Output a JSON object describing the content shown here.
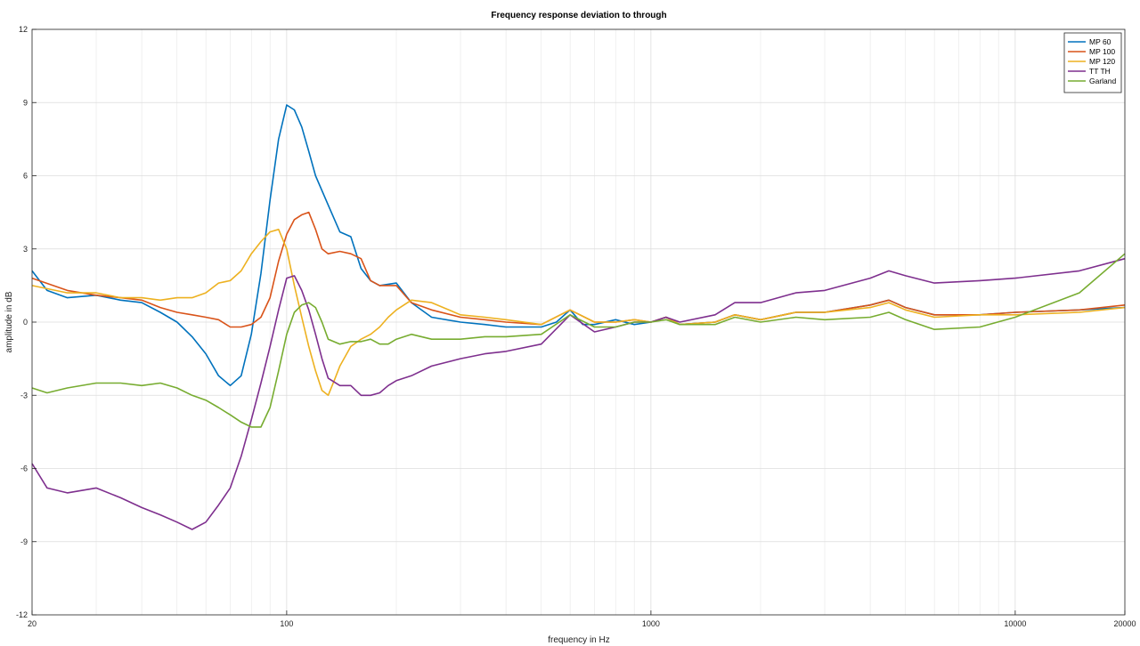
{
  "chart_data": {
    "type": "line",
    "title": "Frequency response deviation to through",
    "xlabel": "frequency in Hz",
    "ylabel": "amplitude in dB",
    "xscale": "log",
    "xlim": [
      20,
      20000
    ],
    "ylim": [
      -12,
      12
    ],
    "xticks": [
      20,
      100,
      1000,
      10000,
      20000
    ],
    "xtick_labels": [
      "20",
      "100",
      "1000",
      "10000",
      "20000"
    ],
    "yticks": [
      -12,
      -9,
      -6,
      -3,
      0,
      3,
      6,
      9,
      12
    ],
    "ytick_labels": [
      "-12",
      "-9",
      "-6",
      "-3",
      "0",
      "3",
      "6",
      "9",
      "12"
    ],
    "grid": true,
    "legend_position": "top-right",
    "series": [
      {
        "name": "MP 60",
        "color": "#0072BD",
        "x": [
          20,
          22,
          25,
          30,
          35,
          40,
          45,
          50,
          55,
          60,
          65,
          70,
          75,
          80,
          85,
          90,
          95,
          100,
          105,
          110,
          115,
          120,
          130,
          140,
          150,
          160,
          170,
          180,
          200,
          220,
          250,
          300,
          350,
          400,
          450,
          500,
          550,
          600,
          650,
          700,
          800,
          900,
          1000,
          1100,
          1200,
          1500,
          1700,
          2000,
          2500,
          3000,
          4000,
          4500,
          5000,
          6000,
          8000,
          10000,
          15000,
          20000
        ],
        "y": [
          2.1,
          1.3,
          1.0,
          1.1,
          0.9,
          0.8,
          0.4,
          0.0,
          -0.6,
          -1.3,
          -2.2,
          -2.6,
          -2.2,
          -0.5,
          2.0,
          5.0,
          7.5,
          8.9,
          8.7,
          8.0,
          7.0,
          6.0,
          4.8,
          3.7,
          3.5,
          2.2,
          1.7,
          1.5,
          1.6,
          0.8,
          0.2,
          0.0,
          -0.1,
          -0.2,
          -0.2,
          -0.2,
          0.0,
          0.5,
          -0.1,
          -0.1,
          0.1,
          -0.1,
          0.0,
          0.2,
          -0.1,
          0.0,
          0.3,
          0.1,
          0.4,
          0.4,
          0.7,
          0.9,
          0.6,
          0.3,
          0.3,
          0.4,
          0.5,
          0.6
        ]
      },
      {
        "name": "MP 100",
        "color": "#D95319",
        "x": [
          20,
          25,
          30,
          35,
          40,
          45,
          50,
          55,
          60,
          65,
          70,
          75,
          80,
          85,
          90,
          95,
          100,
          105,
          110,
          115,
          120,
          125,
          130,
          140,
          150,
          160,
          170,
          180,
          200,
          220,
          250,
          300,
          350,
          400,
          500,
          600,
          700,
          800,
          900,
          1000,
          1100,
          1200,
          1500,
          1700,
          2000,
          2500,
          3000,
          4000,
          4500,
          5000,
          6000,
          8000,
          10000,
          15000,
          20000
        ],
        "y": [
          1.8,
          1.3,
          1.1,
          1.0,
          0.9,
          0.6,
          0.4,
          0.3,
          0.2,
          0.1,
          -0.2,
          -0.2,
          -0.1,
          0.2,
          1.0,
          2.5,
          3.6,
          4.2,
          4.4,
          4.5,
          3.8,
          3.0,
          2.8,
          2.9,
          2.8,
          2.6,
          1.7,
          1.5,
          1.5,
          0.8,
          0.5,
          0.2,
          0.1,
          0.0,
          -0.1,
          0.5,
          0.0,
          0.0,
          0.1,
          0.0,
          0.2,
          -0.1,
          0.0,
          0.3,
          0.1,
          0.4,
          0.4,
          0.7,
          0.9,
          0.6,
          0.3,
          0.3,
          0.4,
          0.5,
          0.7
        ]
      },
      {
        "name": "MP 120",
        "color": "#EDB120",
        "x": [
          20,
          25,
          30,
          35,
          40,
          45,
          50,
          55,
          60,
          65,
          70,
          75,
          80,
          85,
          90,
          95,
          100,
          105,
          110,
          115,
          120,
          125,
          130,
          135,
          140,
          150,
          160,
          170,
          180,
          190,
          200,
          220,
          250,
          300,
          350,
          400,
          500,
          600,
          700,
          800,
          900,
          1000,
          1100,
          1200,
          1500,
          1700,
          2000,
          2500,
          3000,
          4000,
          4500,
          5000,
          6000,
          8000,
          10000,
          15000,
          20000
        ],
        "y": [
          1.5,
          1.2,
          1.2,
          1.0,
          1.0,
          0.9,
          1.0,
          1.0,
          1.2,
          1.6,
          1.7,
          2.1,
          2.8,
          3.3,
          3.7,
          3.8,
          3.0,
          1.5,
          0.2,
          -1.0,
          -2.0,
          -2.8,
          -3.0,
          -2.4,
          -1.8,
          -1.0,
          -0.7,
          -0.5,
          -0.2,
          0.2,
          0.5,
          0.9,
          0.8,
          0.3,
          0.2,
          0.1,
          -0.1,
          0.5,
          0.0,
          0.0,
          0.1,
          0.0,
          0.2,
          -0.1,
          0.0,
          0.3,
          0.1,
          0.4,
          0.4,
          0.6,
          0.8,
          0.5,
          0.2,
          0.3,
          0.3,
          0.4,
          0.6
        ]
      },
      {
        "name": "TT TH",
        "color": "#7E2F8E",
        "x": [
          20,
          22,
          25,
          30,
          35,
          40,
          45,
          50,
          55,
          60,
          65,
          70,
          75,
          80,
          85,
          90,
          95,
          100,
          105,
          110,
          115,
          120,
          125,
          130,
          140,
          150,
          160,
          170,
          180,
          190,
          200,
          220,
          250,
          300,
          350,
          400,
          500,
          600,
          700,
          800,
          900,
          1000,
          1100,
          1200,
          1500,
          1700,
          2000,
          2500,
          3000,
          4000,
          4500,
          5000,
          6000,
          8000,
          10000,
          15000,
          20000
        ],
        "y": [
          -5.8,
          -6.8,
          -7.0,
          -6.8,
          -7.2,
          -7.6,
          -7.9,
          -8.2,
          -8.5,
          -8.2,
          -7.5,
          -6.8,
          -5.5,
          -4.0,
          -2.5,
          -1.0,
          0.5,
          1.8,
          1.9,
          1.3,
          0.5,
          -0.5,
          -1.5,
          -2.3,
          -2.6,
          -2.6,
          -3.0,
          -3.0,
          -2.9,
          -2.6,
          -2.4,
          -2.2,
          -1.8,
          -1.5,
          -1.3,
          -1.2,
          -0.9,
          0.3,
          -0.4,
          -0.2,
          0.0,
          0.0,
          0.2,
          0.0,
          0.3,
          0.8,
          0.8,
          1.2,
          1.3,
          1.8,
          2.1,
          1.9,
          1.6,
          1.7,
          1.8,
          2.1,
          2.6
        ]
      },
      {
        "name": "Garland",
        "color": "#77AC30",
        "x": [
          20,
          22,
          25,
          30,
          35,
          40,
          45,
          50,
          55,
          60,
          65,
          70,
          75,
          80,
          85,
          90,
          95,
          100,
          105,
          110,
          115,
          120,
          125,
          130,
          140,
          150,
          160,
          170,
          180,
          190,
          200,
          220,
          250,
          300,
          350,
          400,
          500,
          600,
          700,
          800,
          900,
          1000,
          1100,
          1200,
          1500,
          1700,
          2000,
          2500,
          3000,
          4000,
          4500,
          5000,
          6000,
          8000,
          10000,
          15000,
          20000
        ],
        "y": [
          -2.7,
          -2.9,
          -2.7,
          -2.5,
          -2.5,
          -2.6,
          -2.5,
          -2.7,
          -3.0,
          -3.2,
          -3.5,
          -3.8,
          -4.1,
          -4.3,
          -4.3,
          -3.5,
          -2.0,
          -0.5,
          0.4,
          0.7,
          0.8,
          0.6,
          0.0,
          -0.7,
          -0.9,
          -0.8,
          -0.8,
          -0.7,
          -0.9,
          -0.9,
          -0.7,
          -0.5,
          -0.7,
          -0.7,
          -0.6,
          -0.6,
          -0.5,
          0.3,
          -0.2,
          -0.2,
          0.0,
          0.0,
          0.1,
          -0.1,
          -0.1,
          0.2,
          0.0,
          0.2,
          0.1,
          0.2,
          0.4,
          0.1,
          -0.3,
          -0.2,
          0.2,
          1.2,
          2.8
        ]
      }
    ]
  }
}
